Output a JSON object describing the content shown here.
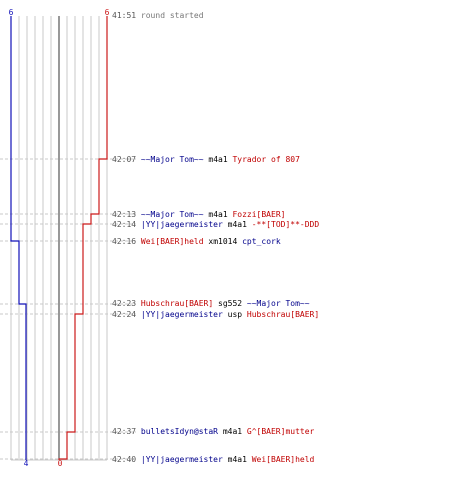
{
  "colors": {
    "team_blue": "#1010b8",
    "team_red": "#cc1a1a",
    "grid": "#c8c8c8",
    "guide": "#c8c8c8",
    "center_line": "#555555",
    "timestamp": "#555555",
    "start_text": "#777777",
    "player_blue": "#00008b",
    "player_red": "#c00000",
    "weapon": "#000000"
  },
  "chart_data": {
    "type": "line",
    "title": "",
    "xlabel": "",
    "ylabel": "",
    "axis_numbers": {
      "top_blue": "6",
      "top_red": "6",
      "bottom_blue": "4",
      "bottom_red": "0"
    },
    "xlim": [
      0,
      7
    ],
    "series": [
      {
        "name": "",
        "color": "#1010b8",
        "start": 6,
        "steps": [
          {
            "event": 3,
            "value": 5
          },
          {
            "event": 4,
            "value": 4
          }
        ]
      },
      {
        "name": "",
        "color": "#cc1a1a",
        "start": 6,
        "steps": [
          {
            "event": 0,
            "value": 5
          },
          {
            "event": 1,
            "value": 4
          },
          {
            "event": 2,
            "value": 3
          },
          {
            "event": 5,
            "value": 2
          },
          {
            "event": 6,
            "value": 1
          },
          {
            "event": 7,
            "value": 0
          }
        ]
      }
    ]
  },
  "log": {
    "start": {
      "time": "41:51",
      "text": "round started"
    },
    "events": [
      {
        "time": "42:07",
        "killer": "~~Major Tom~~",
        "killer_team": "blue",
        "weapon": "m4a1",
        "victim": "Tyrador of 807",
        "victim_team": "red"
      },
      {
        "time": "42:13",
        "killer": "~~Major Tom~~",
        "killer_team": "blue",
        "weapon": "m4a1",
        "victim": "Fozzi[BAER]",
        "victim_team": "red"
      },
      {
        "time": "42:14",
        "killer": "|YY|jaegermeister",
        "killer_team": "blue",
        "weapon": "m4a1",
        "victim": "-**[TOD]**-DDD",
        "victim_team": "red"
      },
      {
        "time": "42:16",
        "killer": "Wei[BAER]held",
        "killer_team": "red",
        "weapon": "xm1014",
        "victim": "cpt_cork",
        "victim_team": "blue"
      },
      {
        "time": "42:23",
        "killer": "Hubschrau[BAER]",
        "killer_team": "red",
        "weapon": "sg552",
        "victim": "~~Major Tom~~",
        "victim_team": "blue"
      },
      {
        "time": "42:24",
        "killer": "|YY|jaegermeister",
        "killer_team": "blue",
        "weapon": "usp",
        "victim": "Hubschrau[BAER]",
        "victim_team": "red"
      },
      {
        "time": "42:37",
        "killer": "bulletsIdyn@staR",
        "killer_team": "blue",
        "weapon": "m4a1",
        "victim": "G^[BAER]mutter",
        "victim_team": "red"
      },
      {
        "time": "42:40",
        "killer": "|YY|jaegermeister",
        "killer_team": "blue",
        "weapon": "m4a1",
        "victim": "Wei[BAER]held",
        "victim_team": "red"
      }
    ]
  }
}
